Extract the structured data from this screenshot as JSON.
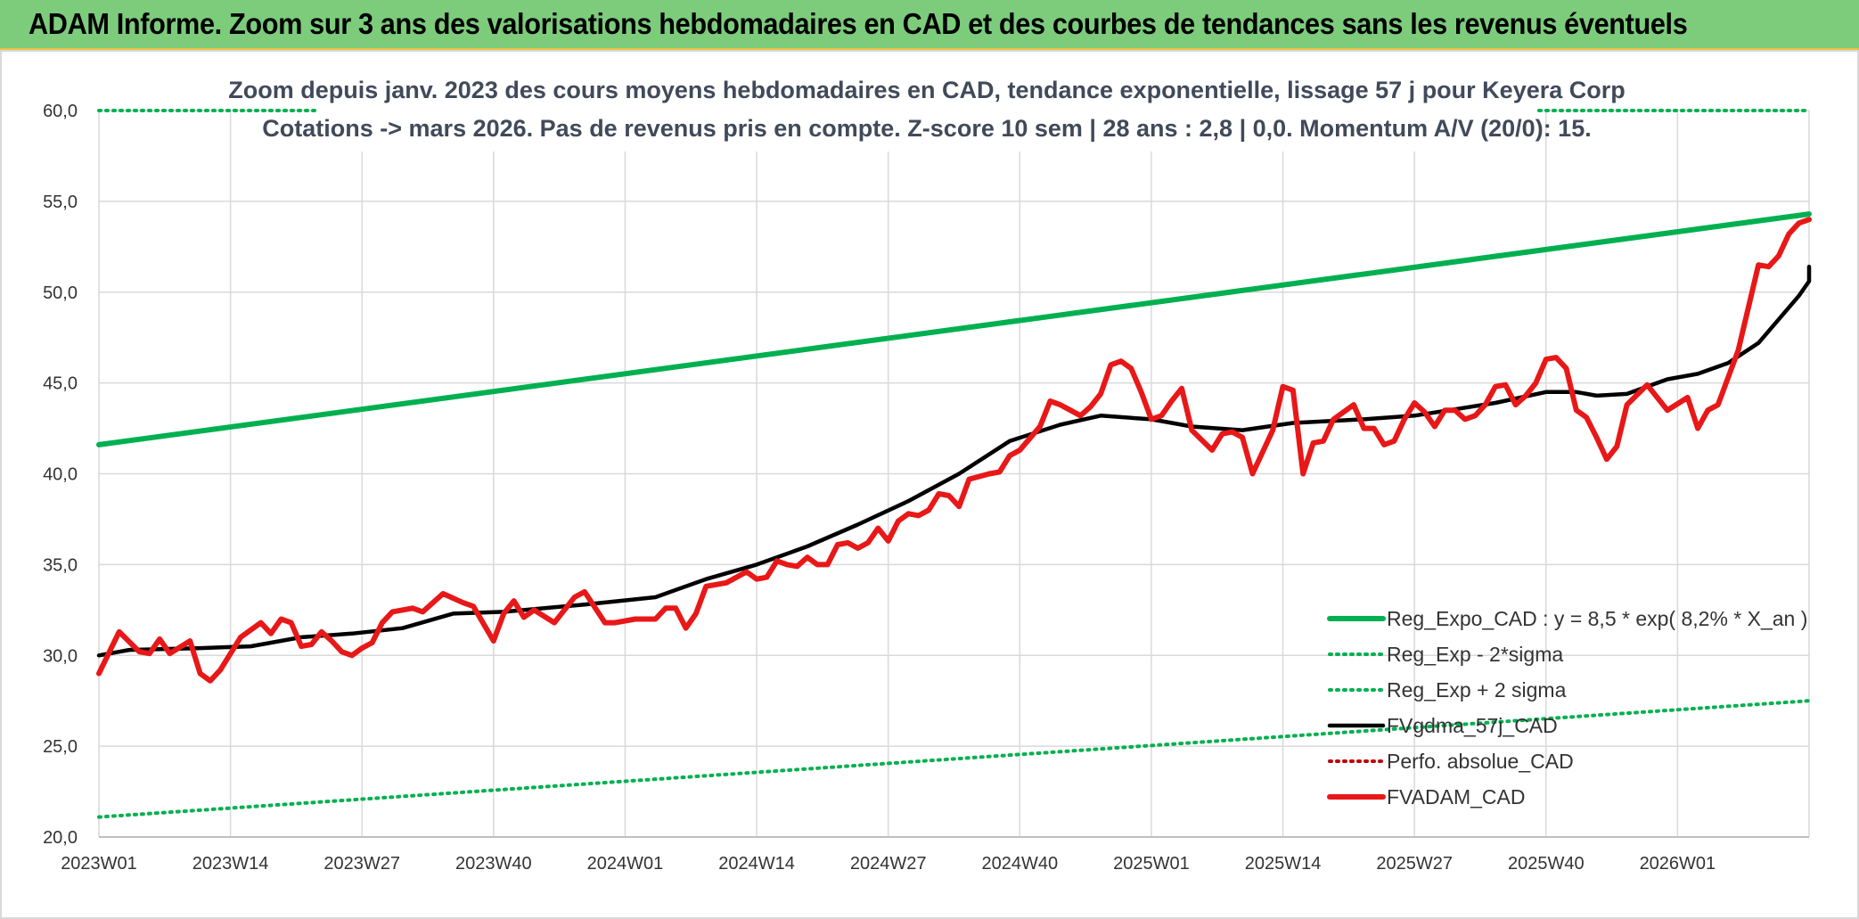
{
  "header": {
    "title": "ADAM Informe. Zoom sur 3 ans des valorisations hebdomadaires en CAD et des courbes de tendances sans les revenus éventuels"
  },
  "chart_data": {
    "type": "line",
    "title": "Zoom depuis janv. 2023 des cours moyens hebdomadaires en CAD, tendance exponentielle, lissage 57 j pour Keyera Corp",
    "subtitle": "Cotations -> mars 2026. Pas de revenus pris en compte. Z-score 10 sem | 28 ans : 2,8 | 0,0. Momentum A/V (20/0): 15.",
    "xlabel": "",
    "ylabel": "",
    "ylim": [
      20,
      60
    ],
    "yticks": [
      "20,0",
      "25,0",
      "30,0",
      "35,0",
      "40,0",
      "45,0",
      "50,0",
      "55,0",
      "60,0"
    ],
    "x_tick_labels": [
      "2023W01",
      "2023W14",
      "2023W27",
      "2023W40",
      "2024W01",
      "2024W14",
      "2024W27",
      "2024W40",
      "2025W01",
      "2025W14",
      "2025W27",
      "2025W40",
      "2026W01"
    ],
    "x_tick_index": [
      0,
      13,
      26,
      39,
      52,
      65,
      78,
      91,
      104,
      117,
      130,
      143,
      156
    ],
    "n_weeks": 170,
    "grid": true,
    "legend_position": "bottom-right",
    "series": [
      {
        "name": "Reg_Expo_CAD : y = 8,5 * exp( 8,2% *  X_an )",
        "color": "#00b050",
        "style": "solid-thick",
        "anchors": [
          [
            0,
            41.6
          ],
          [
            169,
            54.3
          ]
        ]
      },
      {
        "name": "Reg_Exp - 2*sigma",
        "color": "#00b050",
        "style": "dotted",
        "anchors": [
          [
            0,
            21.1
          ],
          [
            169,
            27.5
          ]
        ]
      },
      {
        "name": "Reg_Exp + 2 sigma",
        "color": "#00b050",
        "style": "dotted",
        "anchors": [
          [
            0,
            60.0
          ],
          [
            169,
            60.0
          ]
        ]
      },
      {
        "name": "FVgdma_57j_CAD",
        "color": "#000000",
        "style": "solid",
        "anchors": [
          [
            0,
            30.0
          ],
          [
            3,
            30.3
          ],
          [
            10,
            30.4
          ],
          [
            15,
            30.5
          ],
          [
            20,
            31.0
          ],
          [
            25,
            31.2
          ],
          [
            30,
            31.5
          ],
          [
            35,
            32.3
          ],
          [
            40,
            32.4
          ],
          [
            48,
            32.8
          ],
          [
            55,
            33.2
          ],
          [
            60,
            34.2
          ],
          [
            65,
            35.0
          ],
          [
            70,
            36.0
          ],
          [
            75,
            37.2
          ],
          [
            80,
            38.5
          ],
          [
            85,
            40.0
          ],
          [
            90,
            41.8
          ],
          [
            95,
            42.7
          ],
          [
            99,
            43.2
          ],
          [
            104,
            43.0
          ],
          [
            108,
            42.6
          ],
          [
            113,
            42.4
          ],
          [
            118,
            42.8
          ],
          [
            125,
            43.0
          ],
          [
            130,
            43.2
          ],
          [
            138,
            43.9
          ],
          [
            143,
            44.5
          ],
          [
            146,
            44.5
          ],
          [
            148,
            44.3
          ],
          [
            151,
            44.4
          ],
          [
            155,
            45.2
          ],
          [
            158,
            45.5
          ],
          [
            161,
            46.1
          ],
          [
            164,
            47.2
          ],
          [
            166,
            48.5
          ],
          [
            168,
            49.8
          ],
          [
            171,
            50.6
          ],
          [
            174,
            51.4
          ]
        ]
      },
      {
        "name": "Perfo. absolue_CAD",
        "color": "#c00000",
        "style": "dotted",
        "anchors": []
      },
      {
        "name": "FVADAM_CAD",
        "color": "#e81818",
        "style": "solid-thick",
        "anchors": [
          [
            0,
            29.0
          ],
          [
            2,
            31.3
          ],
          [
            4,
            30.2
          ],
          [
            5,
            30.1
          ],
          [
            6,
            30.9
          ],
          [
            7,
            30.1
          ],
          [
            9,
            30.8
          ],
          [
            10,
            29.0
          ],
          [
            11,
            28.6
          ],
          [
            12,
            29.2
          ],
          [
            14,
            31.0
          ],
          [
            16,
            31.8
          ],
          [
            17,
            31.2
          ],
          [
            18,
            32.0
          ],
          [
            19,
            31.8
          ],
          [
            20,
            30.5
          ],
          [
            21,
            30.6
          ],
          [
            22,
            31.3
          ],
          [
            23,
            30.8
          ],
          [
            24,
            30.2
          ],
          [
            25,
            30.0
          ],
          [
            26,
            30.4
          ],
          [
            27,
            30.7
          ],
          [
            28,
            31.8
          ],
          [
            29,
            32.4
          ],
          [
            31,
            32.6
          ],
          [
            32,
            32.4
          ],
          [
            34,
            33.4
          ],
          [
            36,
            32.9
          ],
          [
            37,
            32.7
          ],
          [
            39,
            30.8
          ],
          [
            40,
            32.3
          ],
          [
            41,
            33.0
          ],
          [
            42,
            32.1
          ],
          [
            43,
            32.5
          ],
          [
            45,
            31.8
          ],
          [
            47,
            33.2
          ],
          [
            48,
            33.5
          ],
          [
            50,
            31.8
          ],
          [
            51,
            31.8
          ],
          [
            53,
            32.0
          ],
          [
            55,
            32.0
          ],
          [
            56,
            32.6
          ],
          [
            57,
            32.6
          ],
          [
            58,
            31.5
          ],
          [
            59,
            32.3
          ],
          [
            60,
            33.8
          ],
          [
            62,
            34.0
          ],
          [
            64,
            34.6
          ],
          [
            65,
            34.2
          ],
          [
            66,
            34.3
          ],
          [
            67,
            35.2
          ],
          [
            68,
            35.0
          ],
          [
            69,
            34.9
          ],
          [
            70,
            35.4
          ],
          [
            71,
            35.0
          ],
          [
            72,
            35.0
          ],
          [
            73,
            36.1
          ],
          [
            74,
            36.2
          ],
          [
            75,
            35.9
          ],
          [
            76,
            36.2
          ],
          [
            77,
            37.0
          ],
          [
            78,
            36.3
          ],
          [
            79,
            37.4
          ],
          [
            80,
            37.8
          ],
          [
            81,
            37.7
          ],
          [
            82,
            38.0
          ],
          [
            83,
            38.9
          ],
          [
            84,
            38.8
          ],
          [
            85,
            38.2
          ],
          [
            86,
            39.7
          ],
          [
            88,
            40.0
          ],
          [
            89,
            40.1
          ],
          [
            90,
            41.0
          ],
          [
            91,
            41.3
          ],
          [
            93,
            42.6
          ],
          [
            94,
            44.0
          ],
          [
            95,
            43.8
          ],
          [
            96,
            43.5
          ],
          [
            97,
            43.2
          ],
          [
            98,
            43.7
          ],
          [
            99,
            44.4
          ],
          [
            100,
            46.0
          ],
          [
            101,
            46.2
          ],
          [
            102,
            45.8
          ],
          [
            103,
            44.5
          ],
          [
            104,
            43.0
          ],
          [
            105,
            43.2
          ],
          [
            106,
            44.0
          ],
          [
            107,
            44.7
          ],
          [
            108,
            42.4
          ],
          [
            110,
            41.3
          ],
          [
            111,
            42.2
          ],
          [
            112,
            42.3
          ],
          [
            113,
            42.0
          ],
          [
            114,
            40.0
          ],
          [
            116,
            42.4
          ],
          [
            117,
            44.8
          ],
          [
            118,
            44.6
          ],
          [
            119,
            40.0
          ],
          [
            120,
            41.7
          ],
          [
            121,
            41.8
          ],
          [
            122,
            43.0
          ],
          [
            124,
            43.8
          ],
          [
            125,
            42.5
          ],
          [
            126,
            42.5
          ],
          [
            127,
            41.6
          ],
          [
            128,
            41.8
          ],
          [
            129,
            43.0
          ],
          [
            130,
            43.9
          ],
          [
            131,
            43.4
          ],
          [
            132,
            42.6
          ],
          [
            133,
            43.5
          ],
          [
            134,
            43.5
          ],
          [
            135,
            43.0
          ],
          [
            136,
            43.2
          ],
          [
            137,
            43.8
          ],
          [
            138,
            44.8
          ],
          [
            139,
            44.9
          ],
          [
            140,
            43.8
          ],
          [
            141,
            44.3
          ],
          [
            142,
            45.0
          ],
          [
            143,
            46.3
          ],
          [
            144,
            46.4
          ],
          [
            145,
            45.8
          ],
          [
            146,
            43.5
          ],
          [
            147,
            43.1
          ],
          [
            148,
            42.0
          ],
          [
            149,
            40.8
          ],
          [
            150,
            41.5
          ],
          [
            151,
            43.8
          ],
          [
            153,
            44.9
          ],
          [
            155,
            43.5
          ],
          [
            157,
            44.2
          ],
          [
            158,
            42.5
          ],
          [
            159,
            43.5
          ],
          [
            160,
            43.8
          ],
          [
            162,
            46.8
          ],
          [
            164,
            51.5
          ],
          [
            165,
            51.4
          ],
          [
            166,
            52.0
          ],
          [
            167,
            53.2
          ],
          [
            168,
            53.8
          ],
          [
            169,
            54.0
          ]
        ]
      }
    ]
  }
}
